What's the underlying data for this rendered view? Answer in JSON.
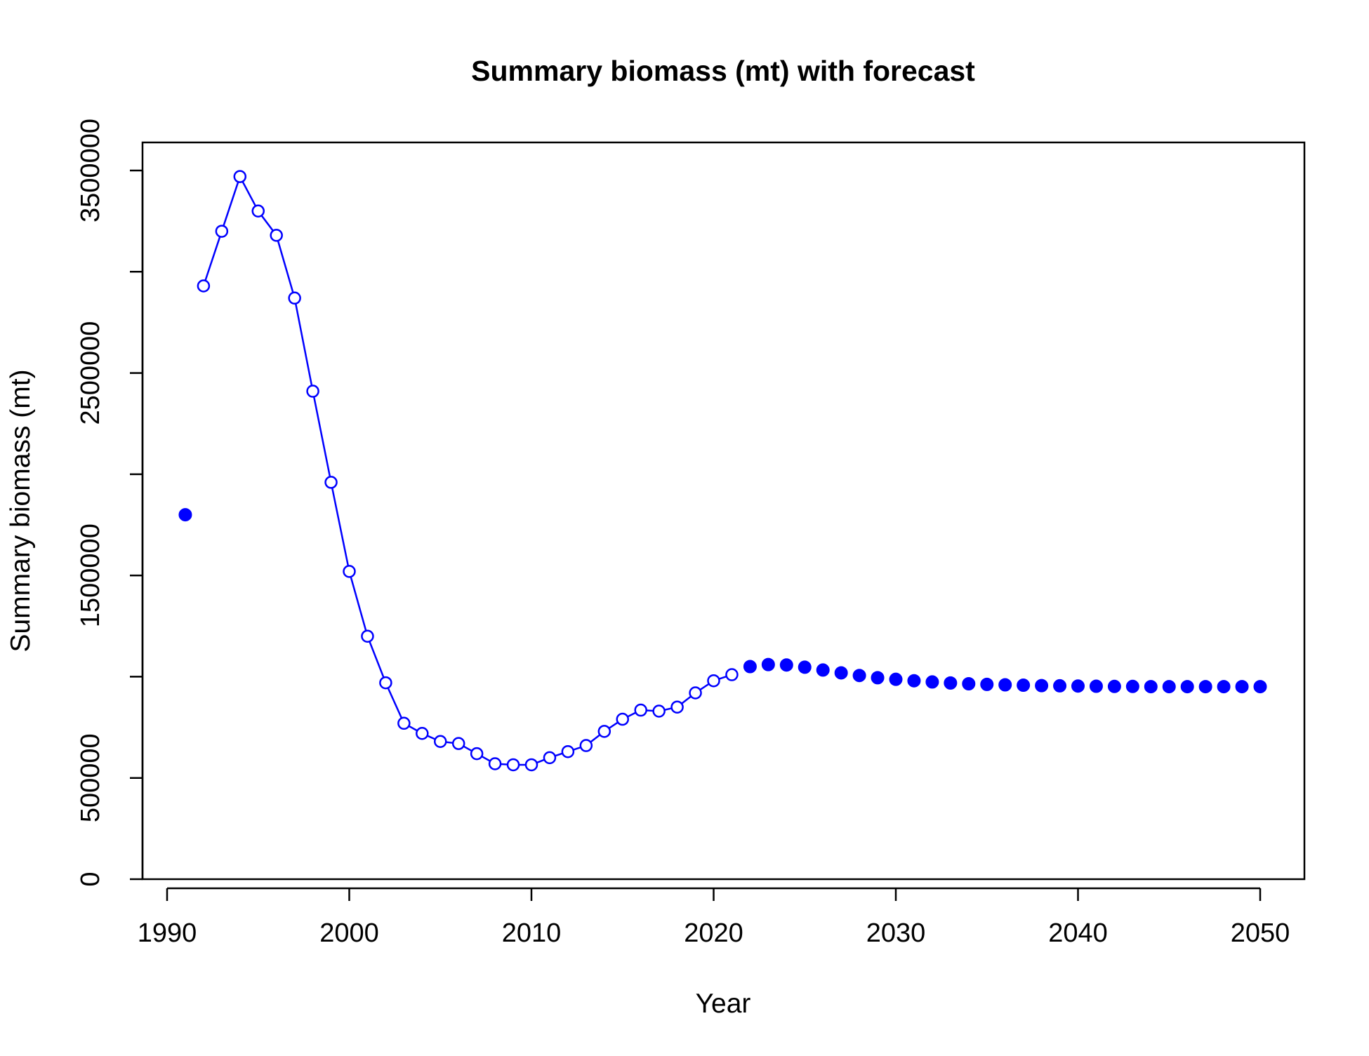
{
  "chart_data": {
    "type": "scatter",
    "title": "Summary biomass (mt) with forecast",
    "xlabel": "Year",
    "ylabel": "Summary biomass (mt)",
    "xlim": [
      1990,
      2050
    ],
    "ylim": [
      0,
      3500000
    ],
    "x_ticks": [
      "1990",
      "2000",
      "2010",
      "2020",
      "2030",
      "2040",
      "2050"
    ],
    "y_ticks": [
      "0",
      "500000",
      "1500000",
      "2500000",
      "3500000"
    ],
    "y_tick_marks": [
      0,
      500000,
      1000000,
      1500000,
      2000000,
      2500000,
      3000000,
      3500000
    ],
    "grid": false,
    "colors": {
      "series": "#0000ff"
    },
    "series": [
      {
        "style": "filled-point",
        "x": [
          1991
        ],
        "y": [
          1800000
        ]
      },
      {
        "style": "line-open-circles",
        "x": [
          1992,
          1993,
          1994,
          1995,
          1996,
          1997,
          1998,
          1999,
          2000,
          2001,
          2002,
          2003,
          2004,
          2005,
          2006,
          2007,
          2008,
          2009,
          2010,
          2011,
          2012,
          2013,
          2014,
          2015,
          2016,
          2017,
          2018,
          2019,
          2020,
          2021
        ],
        "y": [
          2930000,
          3200000,
          3470000,
          3300000,
          3180000,
          2870000,
          2410000,
          1960000,
          1520000,
          1200000,
          970000,
          770000,
          720000,
          680000,
          670000,
          620000,
          570000,
          565000,
          565000,
          600000,
          630000,
          660000,
          730000,
          790000,
          835000,
          830000,
          850000,
          920000,
          980000,
          1010000
        ]
      },
      {
        "style": "filled-points",
        "x": [
          2022,
          2023,
          2024,
          2025,
          2026,
          2027,
          2028,
          2029,
          2030,
          2031,
          2032,
          2033,
          2034,
          2035,
          2036,
          2037,
          2038,
          2039,
          2040,
          2041,
          2042,
          2043,
          2044,
          2045,
          2046,
          2047,
          2048,
          2049,
          2050
        ],
        "y": [
          1050000,
          1060000,
          1058000,
          1047000,
          1033000,
          1019000,
          1006000,
          995000,
          987000,
          980000,
          974000,
          969000,
          965000,
          962000,
          960000,
          958000,
          956000,
          955000,
          954000,
          953000,
          952000,
          952000,
          951000,
          951000,
          951000,
          951000,
          951000,
          951000,
          951000
        ]
      }
    ]
  }
}
